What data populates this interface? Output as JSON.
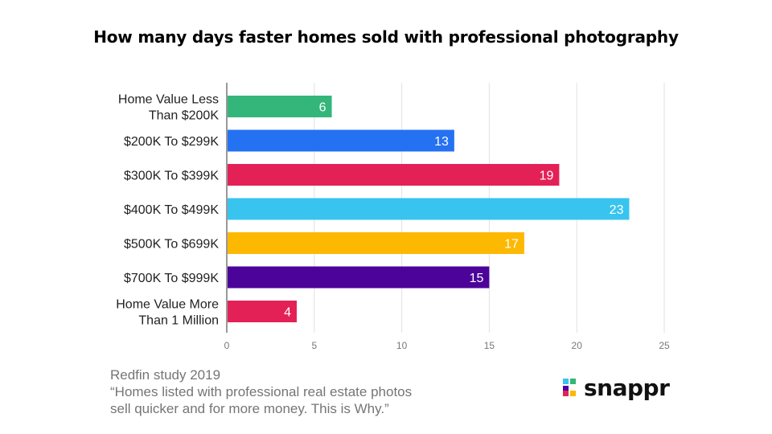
{
  "title": "How many days faster homes sold with professional photography",
  "source": {
    "line1": "Redfin study 2019",
    "line2": "“Homes listed with professional real estate photos",
    "line3": "sell quicker and for more money. This is Why.”"
  },
  "brand": {
    "name": "snappr",
    "icon": "snappr-logo-icon"
  },
  "chart_data": {
    "type": "bar",
    "orientation": "horizontal",
    "categories": [
      [
        "Home Value Less",
        "Than $200K"
      ],
      [
        "$200K To $299K"
      ],
      [
        "$300K To $399K"
      ],
      [
        "$400K To $499K"
      ],
      [
        "$500K To $699K"
      ],
      [
        "$700K To $999K"
      ],
      [
        "Home Value More",
        "Than 1 Million"
      ]
    ],
    "values": [
      6,
      13,
      19,
      23,
      17,
      15,
      4
    ],
    "colors": [
      "#34b67a",
      "#2471f2",
      "#e42157",
      "#39c4f0",
      "#fdb802",
      "#4b039a",
      "#e42157"
    ],
    "xlim": [
      0,
      25
    ],
    "xticks": [
      0,
      5,
      10,
      15,
      20,
      25
    ],
    "grid": true,
    "data_labels": true,
    "xlabel": "",
    "ylabel": ""
  }
}
